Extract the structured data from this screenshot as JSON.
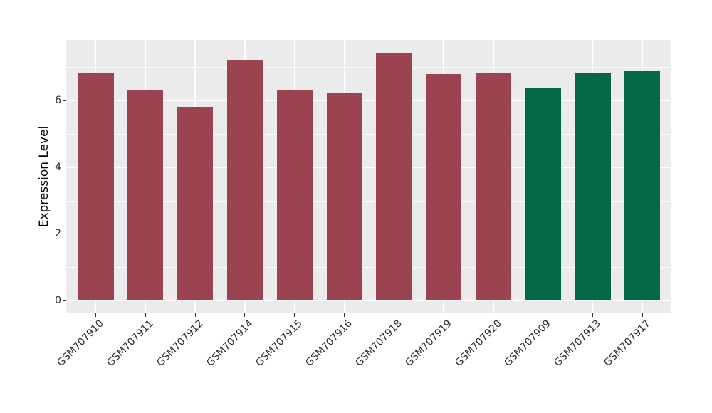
{
  "chart_data": {
    "type": "bar",
    "title": "",
    "xlabel": "",
    "ylabel": "Expression Level",
    "categories": [
      "GSM707910",
      "GSM707911",
      "GSM707912",
      "GSM707914",
      "GSM707915",
      "GSM707916",
      "GSM707918",
      "GSM707919",
      "GSM707920",
      "GSM707909",
      "GSM707913",
      "GSM707917"
    ],
    "values": [
      6.82,
      6.32,
      5.8,
      7.21,
      6.29,
      6.23,
      7.42,
      6.8,
      6.84,
      6.37,
      6.84,
      6.88
    ],
    "bar_colors": [
      "#9B4350",
      "#9B4350",
      "#9B4350",
      "#9B4350",
      "#9B4350",
      "#9B4350",
      "#9B4350",
      "#9B4350",
      "#9B4350",
      "#026846",
      "#026846",
      "#026846"
    ],
    "group_colors": {
      "red_group": "#9B4350",
      "green_group": "#026846"
    },
    "yticks": [
      0,
      2,
      4,
      6
    ],
    "yticks_minor": [
      1,
      3,
      5,
      7
    ],
    "ylim": [
      0,
      7.81
    ],
    "x_tick_angle_deg": 45,
    "grid": "on",
    "legend_position": "none",
    "panel_bg": "#EBEBEB",
    "grid_color": "#FFFFFF",
    "tick_color": "#333333",
    "tick_label_color": "#2f2f2f"
  }
}
